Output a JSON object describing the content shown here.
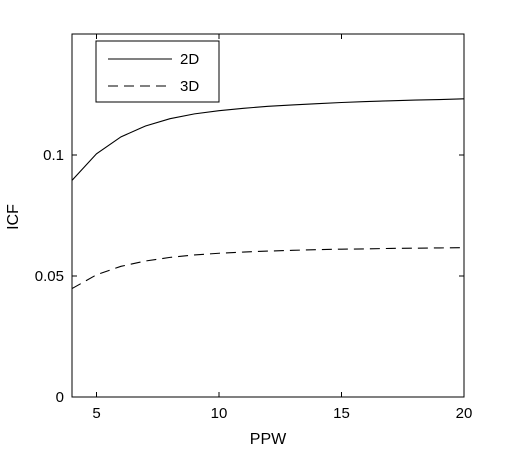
{
  "chart_data": {
    "type": "line",
    "title": "",
    "xlabel": "PPW",
    "ylabel": "ICF",
    "xlim": [
      4,
      20
    ],
    "ylim": [
      0,
      0.15
    ],
    "xticks": [
      5,
      10,
      15,
      20
    ],
    "xtick_labels": [
      "5",
      "10",
      "15",
      "20"
    ],
    "yticks": [
      0,
      0.05,
      0.1
    ],
    "ytick_labels": [
      "0",
      "0.05",
      "0.1"
    ],
    "grid": false,
    "legend_position": "top-left",
    "x": [
      4,
      5,
      6,
      7,
      8,
      9,
      10,
      11,
      12,
      13,
      14,
      15,
      16,
      17,
      18,
      19,
      20
    ],
    "series": [
      {
        "name": "2D",
        "style": "solid",
        "color": "#000000",
        "values": [
          0.0895,
          0.1005,
          0.1075,
          0.112,
          0.115,
          0.117,
          0.1183,
          0.1193,
          0.1201,
          0.1207,
          0.1212,
          0.1217,
          0.1221,
          0.1224,
          0.1227,
          0.1229,
          0.1232
        ]
      },
      {
        "name": "3D",
        "style": "dashed",
        "color": "#000000",
        "values": [
          0.0448,
          0.0505,
          0.054,
          0.0562,
          0.0577,
          0.0587,
          0.0594,
          0.0599,
          0.0603,
          0.0606,
          0.0609,
          0.0611,
          0.0612,
          0.0614,
          0.0615,
          0.0616,
          0.0617
        ]
      }
    ]
  }
}
